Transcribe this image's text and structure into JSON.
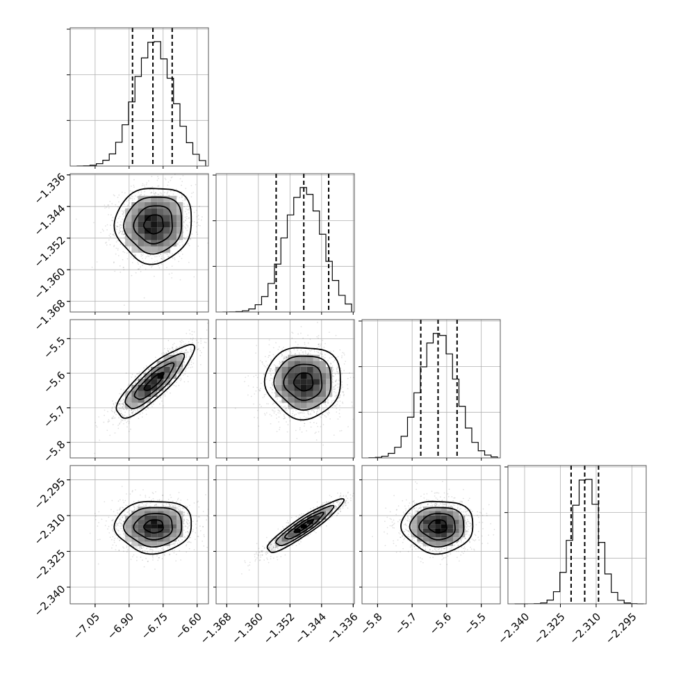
{
  "chart_data": {
    "type": "corner",
    "grid": true,
    "parameters": [
      {
        "range": [
          -7.16,
          -6.55
        ],
        "mean": -6.79,
        "sigma": 0.085,
        "quantiles": [
          -6.885,
          -6.795,
          -6.71
        ],
        "ticks": [
          -7.05,
          -6.9,
          -6.75,
          -6.6
        ],
        "tick_labels": [
          "−7.05",
          "−6.90",
          "−6.75",
          "−6.60"
        ]
      },
      {
        "range": [
          -1.3707,
          -1.3357
        ],
        "mean": -1.3485,
        "sigma": 0.0048,
        "quantiles": [
          -1.3555,
          -1.3485,
          -1.3422
        ],
        "ticks": [
          -1.368,
          -1.36,
          -1.352,
          -1.344,
          -1.336
        ],
        "tick_labels": [
          "−1.368",
          "−1.360",
          "−1.352",
          "−1.344",
          "−1.336"
        ]
      },
      {
        "range": [
          -5.845,
          -5.445
        ],
        "mean": -5.625,
        "sigma": 0.052,
        "quantiles": [
          -5.675,
          -5.625,
          -5.57
        ],
        "ticks": [
          -5.8,
          -5.7,
          -5.6,
          -5.5
        ],
        "tick_labels": [
          "−5.8",
          "−5.7",
          "−5.6",
          "−5.5"
        ]
      },
      {
        "range": [
          -2.347,
          -2.289
        ],
        "mean": -2.3145,
        "sigma": 0.0055,
        "quantiles": [
          -2.3205,
          -2.3148,
          -2.309
        ],
        "ticks": [
          -2.34,
          -2.325,
          -2.31,
          -2.295
        ],
        "tick_labels": [
          "−2.340",
          "−2.325",
          "−2.310",
          "−2.295"
        ]
      }
    ],
    "correlations": [
      [
        1,
        0.05,
        0.85,
        0.03
      ],
      [
        0.05,
        1,
        0.0,
        0.92
      ],
      [
        0.85,
        0.0,
        1,
        0.0
      ],
      [
        0.03,
        0.92,
        0.0,
        1
      ]
    ],
    "hist_bins": 20,
    "contour_levels_sigma": [
      0.5,
      1.0,
      1.5,
      2.0
    ]
  }
}
